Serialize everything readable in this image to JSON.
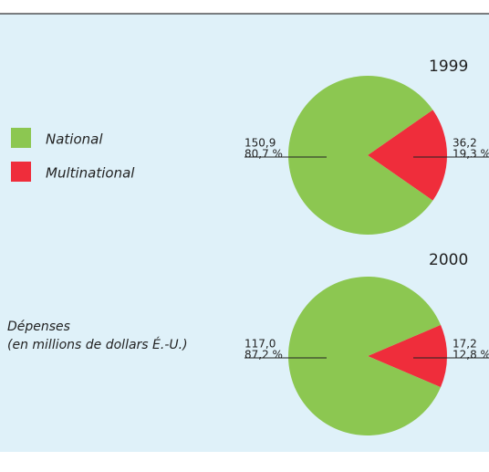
{
  "chart_data": [
    {
      "type": "pie",
      "title": "1999",
      "categories": [
        "National",
        "Multinational"
      ],
      "colors": [
        "#8cc751",
        "#ef2d3b"
      ],
      "values": [
        150.9,
        36.2
      ],
      "value_labels": [
        "150,9",
        "36,2"
      ],
      "percents": [
        80.7,
        19.3
      ],
      "percent_labels": [
        "80,7 %",
        "19,3 %"
      ]
    },
    {
      "type": "pie",
      "title": "2000",
      "categories": [
        "National",
        "Multinational"
      ],
      "colors": [
        "#8cc751",
        "#ef2d3b"
      ],
      "values": [
        117.0,
        17.2
      ],
      "value_labels": [
        "117,0",
        "17,2"
      ],
      "percents": [
        87.2,
        12.8
      ],
      "percent_labels": [
        "87,2 %",
        "12,8 %"
      ]
    }
  ],
  "note": [
    "Dépenses",
    "(en millions de dollars É.-U.)"
  ]
}
